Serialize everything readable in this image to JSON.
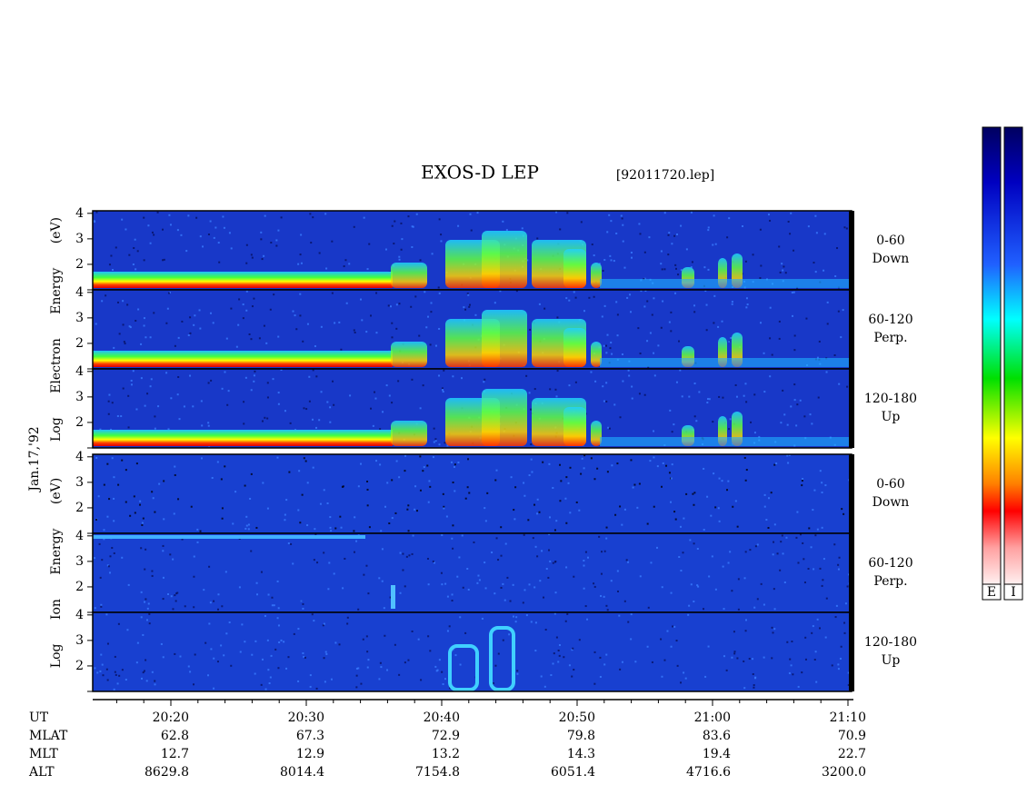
{
  "chart_data": {
    "type": "spectrogram",
    "title": "EXOS-D LEP",
    "file": "[92011720.lep]",
    "date": "Jan.17,'92",
    "groups": [
      {
        "label": "Log Electron Energy (eV)",
        "panels": [
          {
            "angle": "0-60",
            "direction": "Down"
          },
          {
            "angle": "60-120",
            "direction": "Perp."
          },
          {
            "angle": "120-180",
            "direction": "Up"
          }
        ]
      },
      {
        "label": "Log Ion Energy (eV)",
        "panels": [
          {
            "angle": "0-60",
            "direction": "Down"
          },
          {
            "angle": "60-120",
            "direction": "Perp."
          },
          {
            "angle": "120-180",
            "direction": "Up"
          }
        ]
      }
    ],
    "ylim": [
      1,
      4.1
    ],
    "yticks": [
      2,
      3,
      4
    ],
    "colorbars": [
      "E",
      "I"
    ],
    "ephemeris": [
      [
        "UT",
        "20:20",
        "20:30",
        "20:40",
        "20:50",
        "21:00",
        "21:10"
      ],
      [
        "MLAT",
        "62.8",
        "67.3",
        "72.9",
        "79.8",
        "83.6",
        "70.9"
      ],
      [
        "MLT",
        "12.7",
        "12.9",
        "13.2",
        "14.3",
        "19.4",
        "22.7"
      ],
      [
        "ALT",
        "8629.8",
        "8014.4",
        "7154.8",
        "6051.4",
        "4716.6",
        "3200.0"
      ]
    ]
  }
}
